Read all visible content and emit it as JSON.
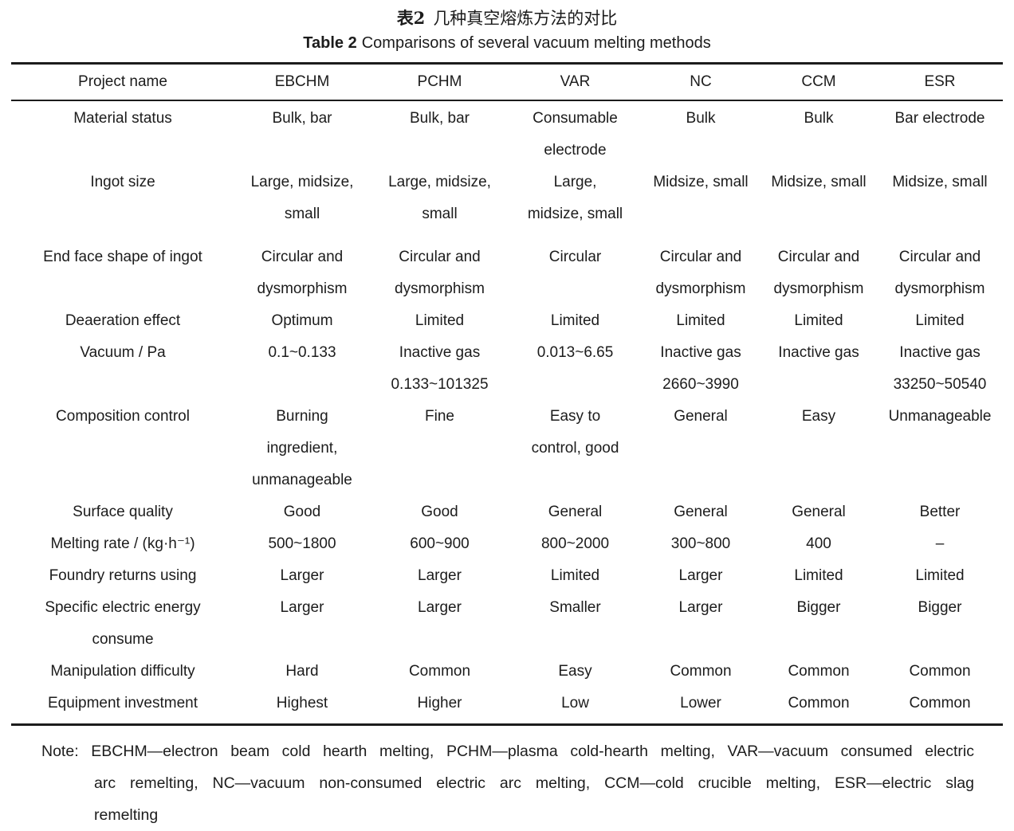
{
  "title": {
    "zh_label": "表2",
    "zh_text": "几种真空熔炼方法的对比",
    "en_label": "Table 2",
    "en_text": "Comparisons of several vacuum melting methods"
  },
  "table": {
    "columns": [
      "Project name",
      "EBCHM",
      "PCHM",
      "VAR",
      "NC",
      "CCM",
      "ESR"
    ],
    "rows": [
      {
        "cells": [
          [
            "Material status"
          ],
          [
            "Bulk, bar"
          ],
          [
            "Bulk, bar"
          ],
          [
            "Consumable",
            "electrode"
          ],
          [
            "Bulk"
          ],
          [
            "Bulk"
          ],
          [
            "Bar electrode"
          ]
        ]
      },
      {
        "cells": [
          [
            "Ingot size"
          ],
          [
            "Large, midsize,",
            "small"
          ],
          [
            "Large, midsize,",
            "small"
          ],
          [
            "Large,",
            "midsize, small"
          ],
          [
            "Midsize, small"
          ],
          [
            "Midsize, small"
          ],
          [
            "Midsize, small"
          ]
        ]
      },
      {
        "cells": [
          [
            "End face shape of ingot"
          ],
          [
            "Circular and",
            "dysmorphism"
          ],
          [
            "Circular and",
            "dysmorphism"
          ],
          [
            "Circular"
          ],
          [
            "Circular and",
            "dysmorphism"
          ],
          [
            "Circular and",
            "dysmorphism"
          ],
          [
            "Circular and",
            "dysmorphism"
          ]
        ]
      },
      {
        "cells": [
          [
            "Deaeration effect"
          ],
          [
            "Optimum"
          ],
          [
            "Limited"
          ],
          [
            "Limited"
          ],
          [
            "Limited"
          ],
          [
            "Limited"
          ],
          [
            "Limited"
          ]
        ]
      },
      {
        "cells": [
          [
            "Vacuum / Pa"
          ],
          [
            "0.1~0.133"
          ],
          [
            "Inactive gas",
            "0.133~101325"
          ],
          [
            "0.013~6.65"
          ],
          [
            "Inactive gas",
            "2660~3990"
          ],
          [
            "Inactive gas"
          ],
          [
            "Inactive gas",
            "33250~50540"
          ]
        ]
      },
      {
        "cells": [
          [
            "Composition control"
          ],
          [
            "Burning",
            "ingredient,",
            "unmanageable"
          ],
          [
            "Fine"
          ],
          [
            "Easy to",
            "control, good"
          ],
          [
            "General"
          ],
          [
            "Easy"
          ],
          [
            "Unmanageable"
          ]
        ]
      },
      {
        "cells": [
          [
            "Surface quality"
          ],
          [
            "Good"
          ],
          [
            "Good"
          ],
          [
            "General"
          ],
          [
            "General"
          ],
          [
            "General"
          ],
          [
            "Better"
          ]
        ]
      },
      {
        "cells": [
          [
            "Melting rate / (kg·h⁻¹)"
          ],
          [
            "500~1800"
          ],
          [
            "600~900"
          ],
          [
            "800~2000"
          ],
          [
            "300~800"
          ],
          [
            "400"
          ],
          [
            "–"
          ]
        ]
      },
      {
        "cells": [
          [
            "Foundry returns using"
          ],
          [
            "Larger"
          ],
          [
            "Larger"
          ],
          [
            "Limited"
          ],
          [
            "Larger"
          ],
          [
            "Limited"
          ],
          [
            "Limited"
          ]
        ]
      },
      {
        "cells": [
          [
            "Specific electric energy",
            "consume"
          ],
          [
            "Larger"
          ],
          [
            "Larger"
          ],
          [
            "Smaller"
          ],
          [
            "Larger"
          ],
          [
            "Bigger"
          ],
          [
            "Bigger"
          ]
        ]
      },
      {
        "cells": [
          [
            "Manipulation difficulty"
          ],
          [
            "Hard"
          ],
          [
            "Common"
          ],
          [
            "Easy"
          ],
          [
            "Common"
          ],
          [
            "Common"
          ],
          [
            "Common"
          ]
        ]
      },
      {
        "cells": [
          [
            "Equipment investment"
          ],
          [
            "Highest"
          ],
          [
            "Higher"
          ],
          [
            "Low"
          ],
          [
            "Lower"
          ],
          [
            "Common"
          ],
          [
            "Common"
          ]
        ]
      }
    ]
  },
  "note": {
    "lines": [
      "Note: EBCHM—electron beam cold hearth melting, PCHM—plasma cold-hearth melting, VAR—vacuum consumed electric",
      "arc remelting, NC—vacuum non-consumed electric arc melting, CCM—cold crucible melting, ESR—electric slag",
      "remelting"
    ]
  },
  "colors": {
    "text": "#1c1c1c",
    "background": "#ffffff",
    "rule": "#1c1c1c"
  }
}
